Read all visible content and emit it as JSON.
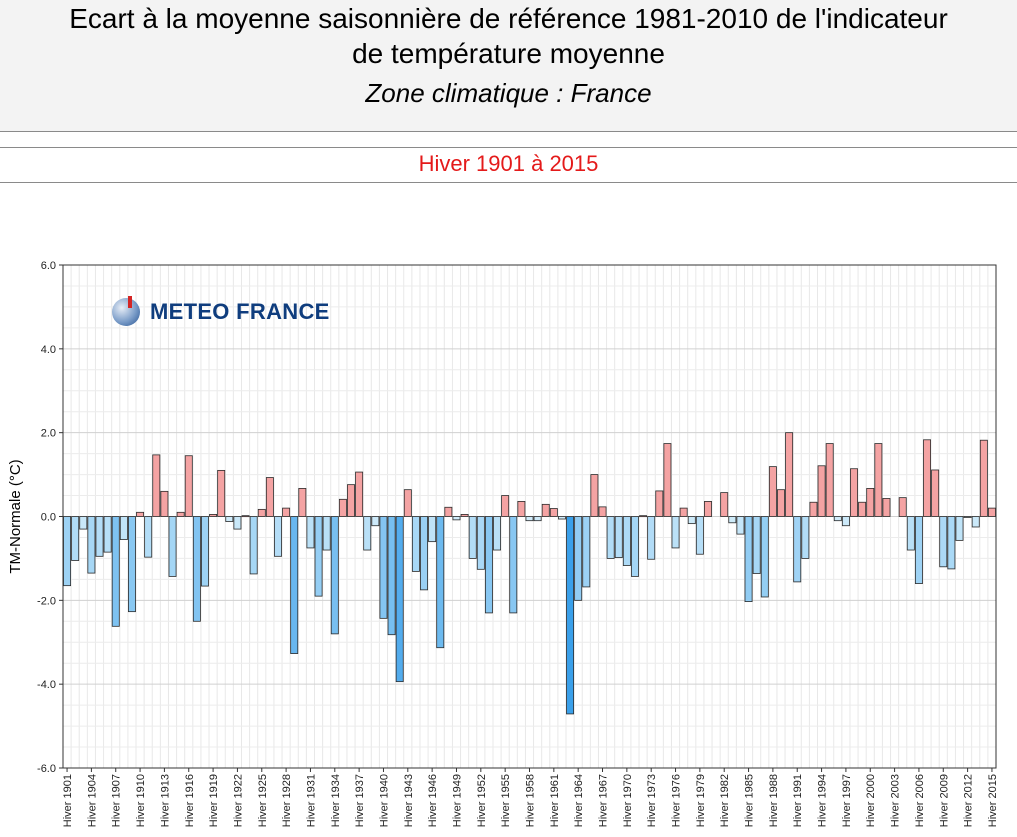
{
  "header": {
    "title_line1": "Ecart à la moyenne saisonnière de référence 1981-2010 de l'indicateur",
    "title_line2": "de température moyenne",
    "subtitle": "Zone climatique : France",
    "period": "Hiver 1901 à 2015"
  },
  "logo": {
    "text": "METEO FRANCE",
    "icon": "meteo-france-globe-icon"
  },
  "colors": {
    "positive_fill": "#f4a3a3",
    "negative_light": "#d3edfa",
    "negative_dark": "#3aa0ea",
    "bar_stroke": "#2b2b2b",
    "period_text": "#e41a1a"
  },
  "chart_data": {
    "type": "bar",
    "ylabel": "TM-Normale (°C)",
    "ylim": [
      -6,
      6
    ],
    "yticks": [
      6,
      4,
      2,
      0,
      -2,
      -4,
      -6
    ],
    "ytick_labels": [
      "6.0",
      "4.0",
      "2.0",
      "0.0",
      "-2.0",
      "-4.0",
      "-6.0"
    ],
    "grid": true,
    "x_label_step": 3,
    "category_prefix": "Hiver",
    "years": [
      1901,
      1902,
      1903,
      1904,
      1905,
      1906,
      1907,
      1908,
      1909,
      1910,
      1911,
      1912,
      1913,
      1914,
      1915,
      1916,
      1917,
      1918,
      1919,
      1920,
      1921,
      1922,
      1923,
      1924,
      1925,
      1926,
      1927,
      1928,
      1929,
      1930,
      1931,
      1932,
      1933,
      1934,
      1935,
      1936,
      1937,
      1938,
      1939,
      1940,
      1941,
      1942,
      1943,
      1944,
      1945,
      1946,
      1947,
      1948,
      1949,
      1950,
      1951,
      1952,
      1953,
      1954,
      1955,
      1956,
      1957,
      1958,
      1959,
      1960,
      1961,
      1962,
      1963,
      1964,
      1965,
      1966,
      1967,
      1968,
      1969,
      1970,
      1971,
      1972,
      1973,
      1974,
      1975,
      1976,
      1977,
      1978,
      1979,
      1980,
      1981,
      1982,
      1983,
      1984,
      1985,
      1986,
      1987,
      1988,
      1989,
      1990,
      1991,
      1992,
      1993,
      1994,
      1995,
      1996,
      1997,
      1998,
      1999,
      2000,
      2001,
      2002,
      2003,
      2004,
      2005,
      2006,
      2007,
      2008,
      2009,
      2010,
      2011,
      2012,
      2013,
      2014,
      2015
    ],
    "values": [
      -1.65,
      -1.05,
      -0.3,
      -1.35,
      -0.95,
      -0.85,
      -2.62,
      -0.55,
      -2.27,
      0.1,
      -0.97,
      1.47,
      0.6,
      -1.43,
      0.1,
      1.45,
      -2.5,
      -1.66,
      0.05,
      1.1,
      -0.12,
      -0.3,
      0.02,
      -1.37,
      0.17,
      0.93,
      -0.95,
      0.2,
      -3.27,
      0.67,
      -0.75,
      -1.9,
      -0.8,
      -2.8,
      0.41,
      0.76,
      1.06,
      -0.8,
      -0.22,
      -2.43,
      -2.82,
      -3.94,
      0.64,
      -1.31,
      -1.75,
      -0.6,
      -3.13,
      0.22,
      -0.08,
      0.05,
      -1.0,
      -1.26,
      -2.3,
      -0.8,
      0.5,
      -2.3,
      0.36,
      -0.1,
      -0.1,
      0.29,
      0.19,
      -0.06,
      -4.71,
      -2.0,
      -1.68,
      1.0,
      0.23,
      -1.0,
      -0.98,
      -1.17,
      -1.43,
      0.02,
      -1.02,
      0.61,
      1.74,
      -0.75,
      0.2,
      -0.17,
      -0.9,
      0.36,
      0.0,
      0.57,
      -0.15,
      -0.42,
      -2.03,
      -1.36,
      -1.92,
      1.19,
      0.64,
      2.0,
      -1.56,
      -1.0,
      0.34,
      1.21,
      1.74,
      -0.1,
      -0.22,
      1.14,
      0.34,
      0.67,
      1.74,
      0.43,
      0.0,
      0.45,
      -0.8,
      -1.6,
      1.83,
      1.11,
      -1.2,
      -1.25,
      -0.57,
      -0.01,
      -0.25,
      1.82,
      0.2
    ]
  }
}
